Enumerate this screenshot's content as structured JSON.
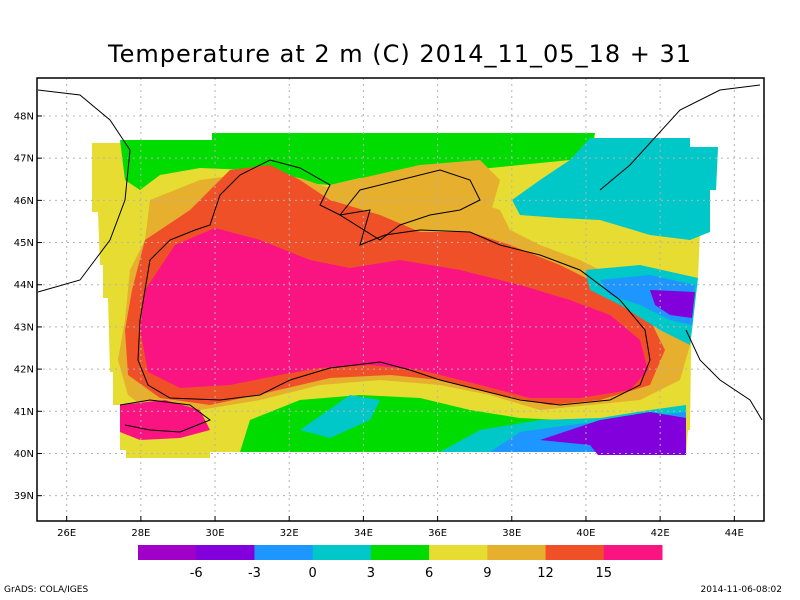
{
  "title": "Temperature at 2 m (C) 2014_11_05_18 + 31",
  "map": {
    "lon_range": [
      25.2,
      44.8
    ],
    "lat_range": [
      38.4,
      48.9
    ],
    "lon_ticks": [
      "26E",
      "28E",
      "30E",
      "32E",
      "34E",
      "36E",
      "38E",
      "40E",
      "42E",
      "44E"
    ],
    "lat_ticks": [
      "39N",
      "40N",
      "41N",
      "42N",
      "43N",
      "44N",
      "45N",
      "46N",
      "47N",
      "48N"
    ],
    "grid": true
  },
  "colorbar": {
    "colors": [
      "#a000c8",
      "#8200dc",
      "#1e96ff",
      "#00c8c8",
      "#00dc00",
      "#e6dc32",
      "#e6af2d",
      "#f05028",
      "#fa1482"
    ],
    "labels": [
      "-6",
      "-3",
      "0",
      "3",
      "6",
      "9",
      "12",
      "15"
    ]
  },
  "footer": {
    "left": "GrADS: COLA/IGES",
    "right": "2014-11-06-08:02"
  }
}
